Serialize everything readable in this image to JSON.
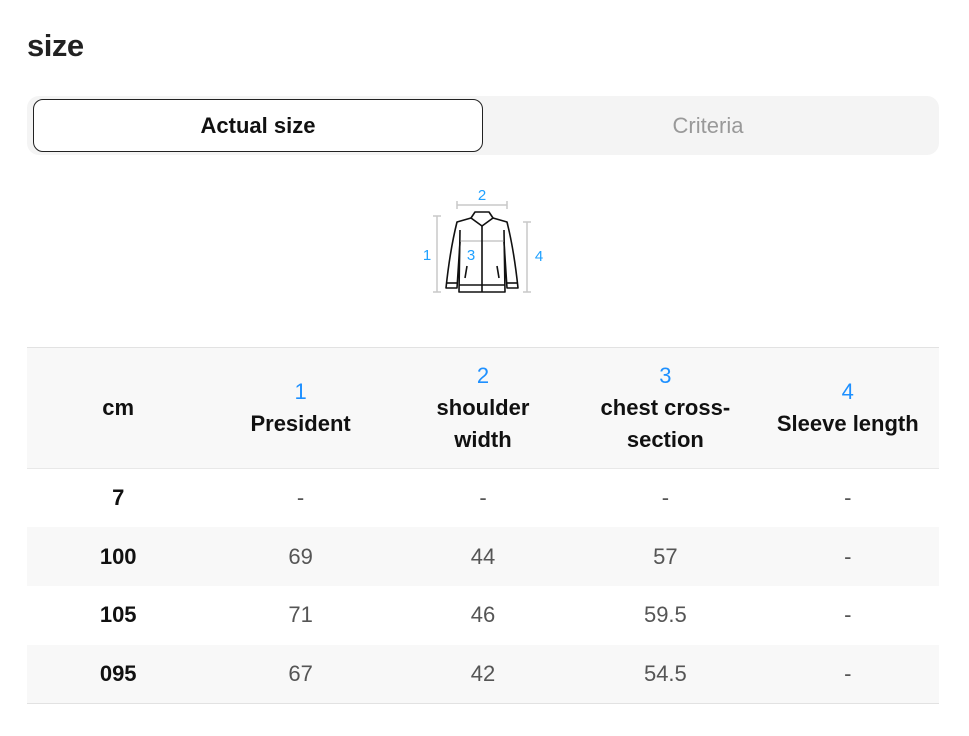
{
  "title": "size",
  "tabs": [
    {
      "label": "Actual size",
      "active": true
    },
    {
      "label": "Criteria",
      "active": false
    }
  ],
  "diagram": {
    "icon": "jacket-measurement-icon",
    "labels": [
      "1",
      "2",
      "3",
      "4"
    ],
    "accent": "#1ea0ff"
  },
  "table": {
    "headers": [
      {
        "num": "",
        "label": "cm"
      },
      {
        "num": "1",
        "label": "President"
      },
      {
        "num": "2",
        "label": "shoulder width"
      },
      {
        "num": "3",
        "label": "chest cross-section"
      },
      {
        "num": "4",
        "label": "Sleeve length"
      }
    ],
    "rows": [
      [
        "7",
        "-",
        "-",
        "-",
        "-"
      ],
      [
        "100",
        "69",
        "44",
        "57",
        "-"
      ],
      [
        "105",
        "71",
        "46",
        "59.5",
        "-"
      ],
      [
        "095",
        "67",
        "42",
        "54.5",
        "-"
      ]
    ]
  }
}
